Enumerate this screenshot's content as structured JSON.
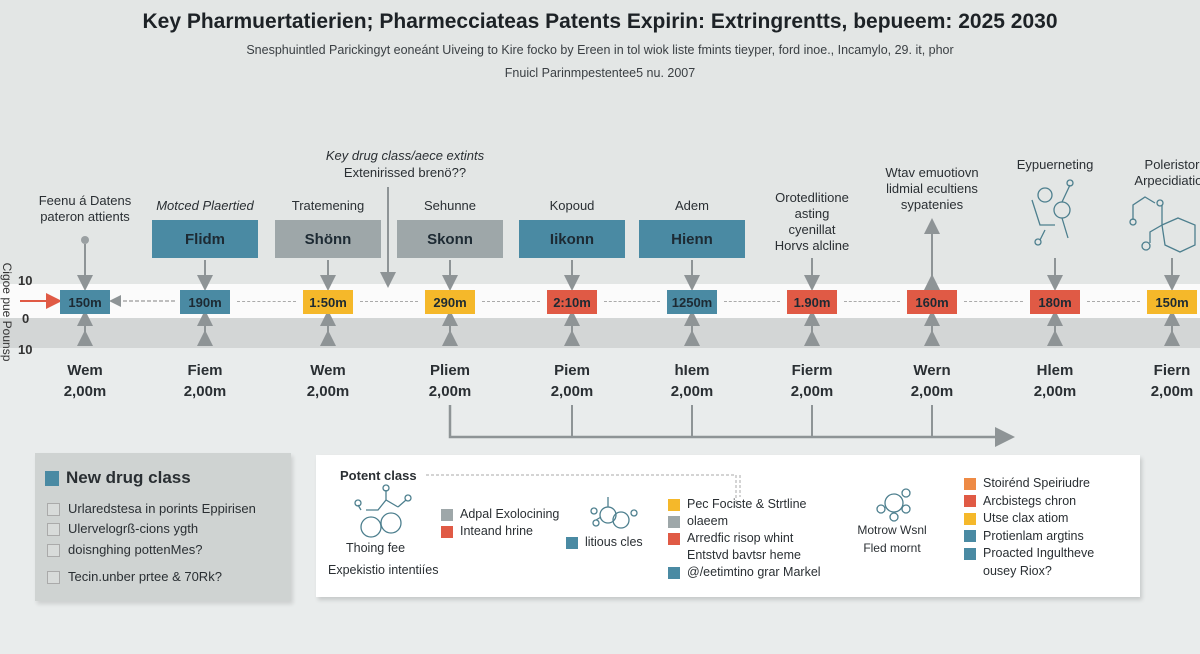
{
  "title": "Key Pharmuertatierien; Pharmecciateas Patents Expirin: Extringrentts, bepueem: 2025 2030",
  "subtitle": [
    "Snesphuintled Parickingyt eoneánt Uiveing to Kire focko by Ereen in tol wiok liste fmints tieyper, ford inoe., Incamylo, 29. it, phor",
    "Fnuicl Parinmpestentee5 nu. 2007"
  ],
  "axis": {
    "label": "Cigoe pue Pounsp",
    "ticks": [
      "10",
      "0",
      "10"
    ]
  },
  "key_note": [
    "Key drug class/aece extints",
    "Extenirissed brenö??"
  ],
  "colors": {
    "teal": "#4a8aa3",
    "gray": "#9ea7a9",
    "yellow": "#f5b82a",
    "red": "#e05a45",
    "orange": "#ee8a45"
  },
  "columns": [
    {
      "top_label": [
        "Feenu á Datens",
        "pateron attients"
      ],
      "box": null,
      "value": "150m",
      "value_color": "teal",
      "bottom": [
        "Wem",
        "2,00m"
      ]
    },
    {
      "top_label": [
        "Motced Plaertied"
      ],
      "italic": true,
      "box": "Flidm",
      "box_color": "teal",
      "value": "190m",
      "value_color": "teal",
      "bottom": [
        "Fiem",
        "2,00m"
      ]
    },
    {
      "top_label": [
        "Tratemening"
      ],
      "box": "Shönn",
      "box_color": "gray",
      "value": "1:50m",
      "value_color": "yellow",
      "bottom": [
        "Wem",
        "2,00m"
      ]
    },
    {
      "top_label": [
        "Sehunne"
      ],
      "box": "Skonn",
      "box_color": "gray",
      "value": "290m",
      "value_color": "yellow",
      "bottom": [
        "Pliem",
        "2,00m"
      ]
    },
    {
      "top_label": [
        "Kopoud"
      ],
      "box": "Iikonn",
      "box_color": "teal",
      "value": "2:10m",
      "value_color": "red",
      "bottom": [
        "Piem",
        "2,00m"
      ]
    },
    {
      "top_label": [
        "Adem"
      ],
      "box": "Hienn",
      "box_color": "teal",
      "value": "1250m",
      "value_color": "teal",
      "bottom": [
        "hIem",
        "2,00m"
      ]
    },
    {
      "top_label": [
        "Orotedlitione",
        "asting",
        "cyenillat",
        "Horvs alcline"
      ],
      "box": null,
      "value": "1.90m",
      "value_color": "red",
      "bottom": [
        "Fierm",
        "2,00m"
      ]
    },
    {
      "top_label": [
        "Wtav emuotiovn",
        "lidmial ecultiens",
        "sypatenies"
      ],
      "box": null,
      "value": "160m",
      "value_color": "red",
      "bottom": [
        "Wern",
        "2,00m"
      ]
    },
    {
      "top_label": [
        "Eypuerneting"
      ],
      "box": null,
      "molecule": true,
      "value": "180m",
      "value_color": "red",
      "bottom": [
        "Hlem",
        "2,00m"
      ]
    },
    {
      "top_label": [
        "Poleristor",
        "Arpecidiation"
      ],
      "box": null,
      "molecule": true,
      "value": "150m",
      "value_color": "yellow",
      "bottom": [
        "Fiern",
        "2,00m"
      ]
    }
  ],
  "left_panel": {
    "title": "New drug class",
    "items": [
      "Urlaredstesa in porints Eppirisen",
      "Ulervelogrß-cions ygth",
      "doisnghing pottenMes?",
      "Tecin.unber prtee & 70Rk?"
    ]
  },
  "right_panel": {
    "title": "Potent class",
    "molecule1_label": "Thoing fee",
    "footer": "Expekistio intentiíes",
    "legend_a": [
      {
        "label": "Adpal Exolocining",
        "color": "gray"
      },
      {
        "label": "Inteand hrine",
        "color": "red"
      }
    ],
    "molecule2_label": "litious cles",
    "legend_b": [
      {
        "label": "Pec Fociste & Strtline",
        "color": "yellow"
      },
      {
        "label": "olaeem",
        "color": "gray"
      },
      {
        "label": "Arredfic risop whint",
        "color": "red"
      },
      {
        "label": "Entstvd bavtsr heme",
        "color": null
      },
      {
        "label": "@/eetimtino grar Markel",
        "color": "teal"
      }
    ],
    "molecule3_label": [
      "Motrow Wsnl",
      "Fled mornt"
    ],
    "legend_c": [
      {
        "label": "Stoirénd Speiriudre",
        "color": "orange"
      },
      {
        "label": "Arcbistegs chron",
        "color": "red"
      },
      {
        "label": "Utse clax atiom",
        "color": "yellow"
      },
      {
        "label": "Protienlam argtins",
        "color": "teal"
      },
      {
        "label": "Proacted Ingultheve",
        "color": "teal"
      },
      {
        "label": "ousey Riox?",
        "color": null
      }
    ]
  }
}
